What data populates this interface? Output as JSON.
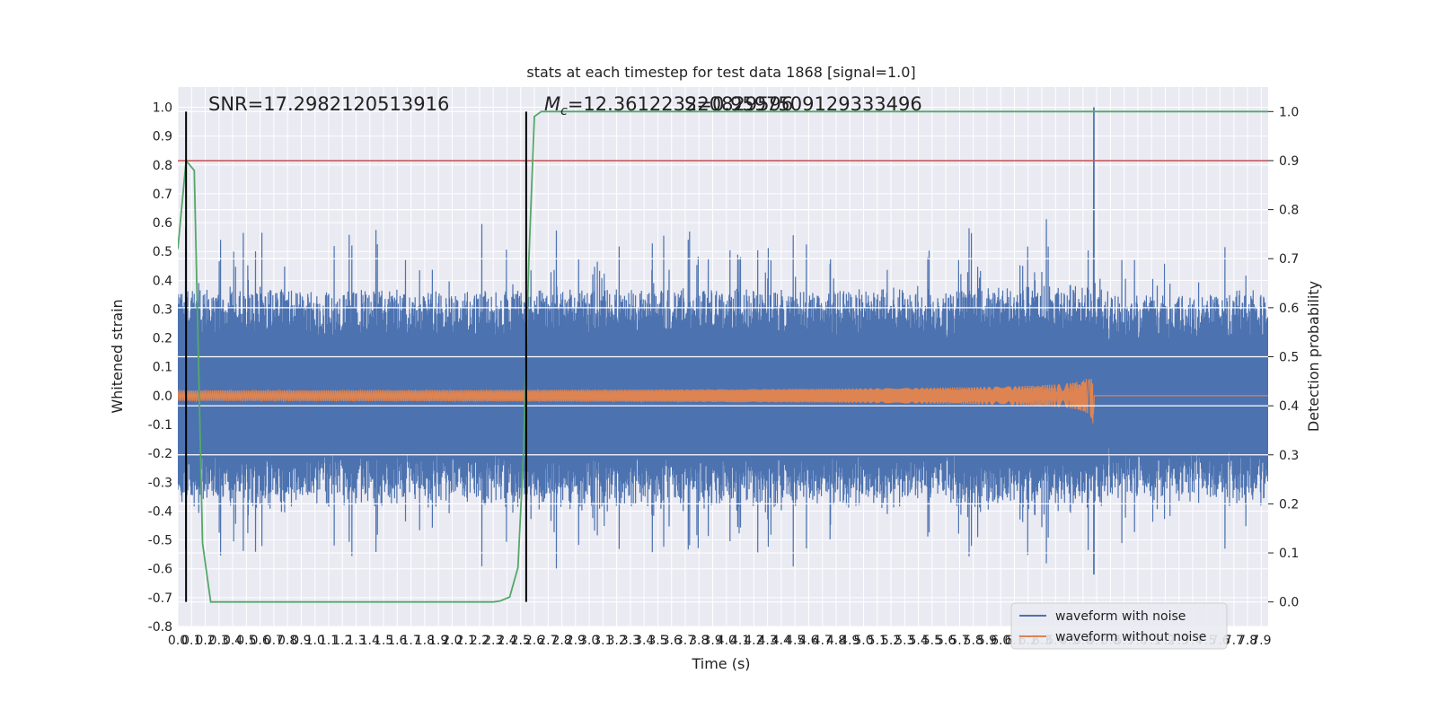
{
  "chart_data": {
    "type": "line",
    "title": "stats at each timestep for test data 1868 [signal=1.0]",
    "xlabel": "Time (s)",
    "ylabel": "Whitened strain",
    "y2label": "Detection probability",
    "xlim": [
      0.0,
      7.95
    ],
    "ylim": [
      -0.8,
      1.07
    ],
    "y2lim": [
      -0.05,
      1.05
    ],
    "x_ticks": [
      "0.0",
      "0.1",
      "0.2",
      "0.3",
      "0.4",
      "0.5",
      "0.6",
      "0.7",
      "0.8",
      "0.9",
      "1.0",
      "1.1",
      "1.2",
      "1.3",
      "1.4",
      "1.5",
      "1.6",
      "1.7",
      "1.8",
      "1.9",
      "2.0",
      "2.1",
      "2.2",
      "2.3",
      "2.4",
      "2.5",
      "2.6",
      "2.7",
      "2.8",
      "2.9",
      "3.0",
      "3.1",
      "3.2",
      "3.3",
      "3.4",
      "3.5",
      "3.6",
      "3.7",
      "3.8",
      "3.9",
      "4.0",
      "4.1",
      "4.2",
      "4.3",
      "4.4",
      "4.5",
      "4.6",
      "4.7",
      "4.8",
      "4.9",
      "5.0",
      "5.1",
      "5.2",
      "5.3",
      "5.4",
      "5.5",
      "5.6",
      "5.7",
      "5.8",
      "5.9",
      "6.0",
      "6.1",
      "6.2",
      "6.3",
      "6.4",
      "6.5",
      "6.6",
      "6.7",
      "6.8",
      "6.9",
      "7.0",
      "7.1",
      "7.2",
      "7.3",
      "7.4",
      "7.5",
      "7.6",
      "7.7",
      "7.8",
      "7.9"
    ],
    "y_ticks": [
      "-0.8",
      "-0.7",
      "-0.6",
      "-0.5",
      "-0.4",
      "-0.3",
      "-0.2",
      "-0.1",
      "0.0",
      "0.1",
      "0.2",
      "0.3",
      "0.4",
      "0.5",
      "0.6",
      "0.7",
      "0.8",
      "0.9",
      "1.0"
    ],
    "y2_ticks": [
      "0.0",
      "0.1",
      "0.2",
      "0.3",
      "0.4",
      "0.5",
      "0.6",
      "0.7",
      "0.8",
      "0.9",
      "1.0"
    ],
    "annotations": {
      "snr": "SNR=17.2982120513916",
      "mc": "=12.361223220829596",
      "mc_symbol": "M",
      "mc_sub": "c",
      "overlap": "=0.9597509129333496",
      "overlap_prefix": "S"
    },
    "threshold": 0.9,
    "vlines_x": [
      0.06,
      2.54
    ],
    "merger_time": 6.68,
    "noise_envelope": {
      "typical_abs": 0.35,
      "peak_at_merger": 1.0,
      "min": -0.72
    },
    "series": [
      {
        "name": "waveform with noise",
        "color": "#4c72b0"
      },
      {
        "name": "waveform without noise",
        "color": "#dd8452"
      },
      {
        "color": "#55a868",
        "x": [
          0.0,
          0.06,
          0.12,
          0.18,
          0.24,
          2.3,
          2.35,
          2.42,
          2.48,
          2.52,
          2.56,
          2.6,
          2.65,
          7.95
        ],
        "y": [
          0.72,
          0.9,
          0.88,
          0.12,
          0.0,
          0.0,
          0.002,
          0.01,
          0.07,
          0.3,
          0.7,
          0.99,
          1.0,
          1.0
        ]
      },
      {
        "color": "#c44e52",
        "y2": 0.9
      }
    ],
    "legend": {
      "placement": "lower-right",
      "entries": [
        "waveform with noise",
        "waveform without noise"
      ]
    },
    "grid": true,
    "background": "#eaeaf2"
  }
}
